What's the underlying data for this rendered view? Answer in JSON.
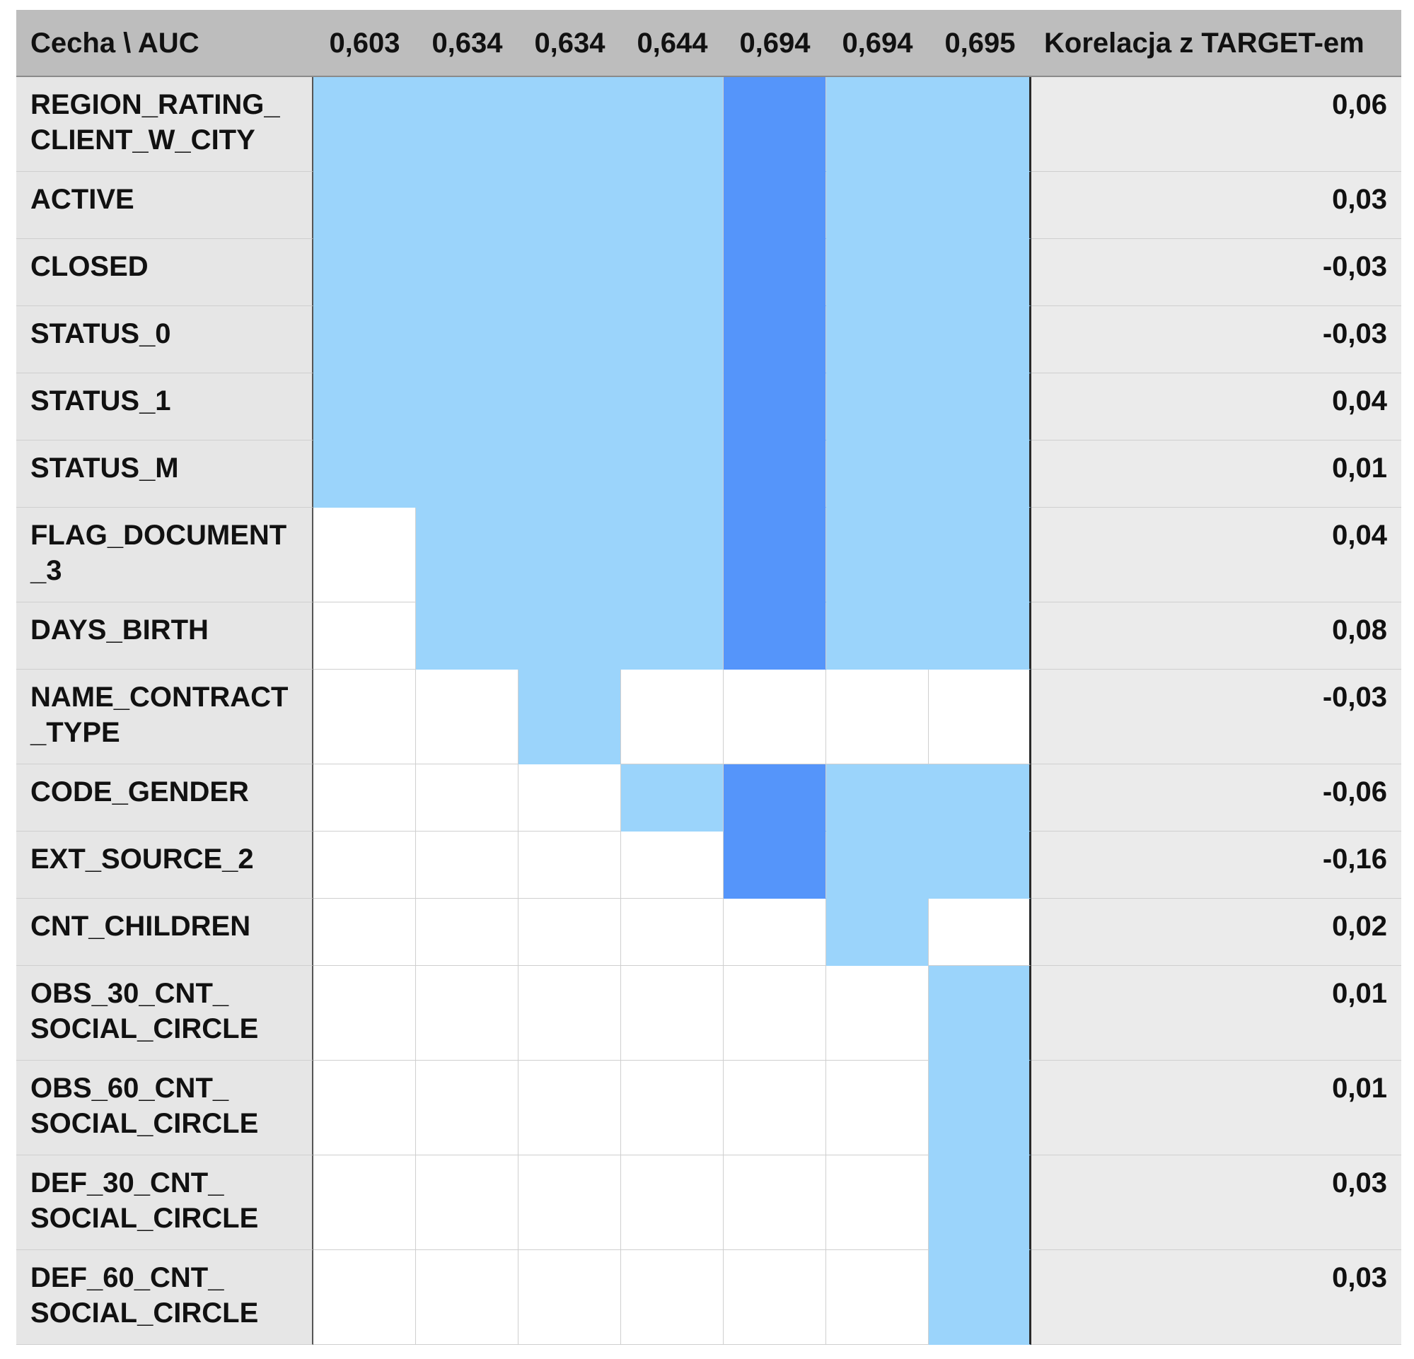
{
  "table": {
    "corner_label": "Cecha \\ AUC",
    "auc_columns": [
      "0,603",
      "0,634",
      "0,634",
      "0,644",
      "0,694",
      "0,694",
      "0,695"
    ],
    "corr_header": "Korelacja z TARGET-em",
    "colors": {
      "header_bg": "#bdbdbd",
      "label_bg": "#e6e6e6",
      "corr_bg": "#ebebeb",
      "light_blue": "#9bd4fb",
      "dark_blue": "#5595fa",
      "empty": "#ffffff"
    },
    "legend_codes": {
      "0": "not selected",
      "1": "selected (light blue)",
      "2": "selected (dark blue)"
    },
    "rows": [
      {
        "feature": "REGION_RATING_\nCLIENT_W_CITY",
        "marks": [
          1,
          1,
          1,
          1,
          2,
          1,
          1
        ],
        "corr": "0,06"
      },
      {
        "feature": "ACTIVE",
        "marks": [
          1,
          1,
          1,
          1,
          2,
          1,
          1
        ],
        "corr": "0,03"
      },
      {
        "feature": "CLOSED",
        "marks": [
          1,
          1,
          1,
          1,
          2,
          1,
          1
        ],
        "corr": "-0,03"
      },
      {
        "feature": "STATUS_0",
        "marks": [
          1,
          1,
          1,
          1,
          2,
          1,
          1
        ],
        "corr": "-0,03"
      },
      {
        "feature": "STATUS_1",
        "marks": [
          1,
          1,
          1,
          1,
          2,
          1,
          1
        ],
        "corr": "0,04"
      },
      {
        "feature": "STATUS_M",
        "marks": [
          1,
          1,
          1,
          1,
          2,
          1,
          1
        ],
        "corr": "0,01"
      },
      {
        "feature": "FLAG_DOCUMENT\n_3",
        "marks": [
          0,
          1,
          1,
          1,
          2,
          1,
          1
        ],
        "corr": "0,04"
      },
      {
        "feature": "DAYS_BIRTH",
        "marks": [
          0,
          1,
          1,
          1,
          2,
          1,
          1
        ],
        "corr": "0,08"
      },
      {
        "feature": "NAME_CONTRACT\n_TYPE",
        "marks": [
          0,
          0,
          1,
          0,
          0,
          0,
          0
        ],
        "corr": "-0,03"
      },
      {
        "feature": "CODE_GENDER",
        "marks": [
          0,
          0,
          0,
          1,
          2,
          1,
          1
        ],
        "corr": "-0,06"
      },
      {
        "feature": "EXT_SOURCE_2",
        "marks": [
          0,
          0,
          0,
          0,
          2,
          1,
          1
        ],
        "corr": "-0,16"
      },
      {
        "feature": "CNT_CHILDREN",
        "marks": [
          0,
          0,
          0,
          0,
          0,
          1,
          0
        ],
        "corr": "0,02"
      },
      {
        "feature": "OBS_30_CNT_\nSOCIAL_CIRCLE",
        "marks": [
          0,
          0,
          0,
          0,
          0,
          0,
          1
        ],
        "corr": "0,01"
      },
      {
        "feature": "OBS_60_CNT_\nSOCIAL_CIRCLE",
        "marks": [
          0,
          0,
          0,
          0,
          0,
          0,
          1
        ],
        "corr": "0,01"
      },
      {
        "feature": "DEF_30_CNT_\nSOCIAL_CIRCLE",
        "marks": [
          0,
          0,
          0,
          0,
          0,
          0,
          1
        ],
        "corr": "0,03"
      },
      {
        "feature": "DEF_60_CNT_\nSOCIAL_CIRCLE",
        "marks": [
          0,
          0,
          0,
          0,
          0,
          0,
          1
        ],
        "corr": "0,03"
      }
    ]
  }
}
